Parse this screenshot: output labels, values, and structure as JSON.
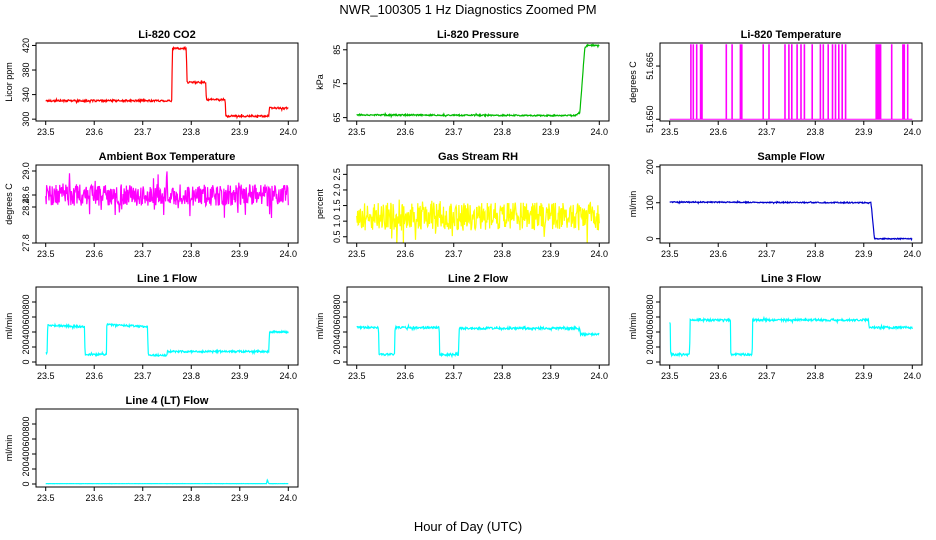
{
  "page_title": "NWR_100305  1 Hz Diagnostics Zoomed PM",
  "x_axis_label": "Hour of Day (UTC)",
  "chart_data": [
    {
      "type": "line",
      "title": "Li-820 CO2",
      "ylabel": "Licor ppm",
      "color": "#ff0000",
      "xlim": [
        23.48,
        24.02
      ],
      "ylim": [
        297,
        424
      ],
      "x_ticks": [
        23.5,
        23.6,
        23.7,
        23.8,
        23.9,
        24.0
      ],
      "y_ticks": [
        300,
        340,
        380,
        420
      ],
      "x_tick_labels": [
        "23.5",
        "23.6",
        "23.7",
        "23.8",
        "23.9",
        "24.0"
      ],
      "y_tick_labels": [
        "300",
        "340",
        "380",
        "420"
      ],
      "x": [
        23.5,
        23.76,
        23.761,
        23.79,
        23.791,
        23.83,
        23.831,
        23.87,
        23.871,
        23.96,
        23.961,
        24.0
      ],
      "y": [
        330,
        330,
        415,
        415,
        360,
        360,
        332,
        332,
        305,
        305,
        318,
        318
      ],
      "noise": 1.5
    },
    {
      "type": "line",
      "title": "Li-820 Pressure",
      "ylabel": "kPa",
      "color": "#00bb00",
      "xlim": [
        23.48,
        24.02
      ],
      "ylim": [
        64,
        87
      ],
      "x_ticks": [
        23.5,
        23.6,
        23.7,
        23.8,
        23.9,
        24.0
      ],
      "y_ticks": [
        65,
        75,
        85
      ],
      "x_tick_labels": [
        "23.5",
        "23.6",
        "23.7",
        "23.8",
        "23.9",
        "24.0"
      ],
      "y_tick_labels": [
        "65",
        "75",
        "85"
      ],
      "x": [
        23.5,
        23.95,
        23.96,
        23.97,
        23.975,
        24.0
      ],
      "y": [
        65.8,
        65.6,
        66.5,
        85.5,
        86.3,
        86.3
      ],
      "noise": 0.2
    },
    {
      "type": "line",
      "title": "Li-820 Temperature",
      "ylabel": "degrees C",
      "color": "#ff00ff",
      "xlim": [
        23.48,
        24.02
      ],
      "ylim": [
        51.6495,
        51.6715
      ],
      "x_ticks": [
        23.5,
        23.6,
        23.7,
        23.8,
        23.9,
        24.0
      ],
      "y_ticks": [
        51.65,
        51.665
      ],
      "x_tick_labels": [
        "23.5",
        "23.6",
        "23.7",
        "23.8",
        "23.9",
        "24.0"
      ],
      "y_tick_labels": [
        "51.650",
        "51.665"
      ],
      "baseline": 51.65,
      "spike_top": 51.671,
      "spikes_x": [
        23.543,
        23.548,
        23.555,
        23.563,
        23.566,
        23.616,
        23.628,
        23.645,
        23.648,
        23.692,
        23.704,
        23.737,
        23.745,
        23.751,
        23.762,
        23.77,
        23.777,
        23.793,
        23.81,
        23.816,
        23.826,
        23.835,
        23.841,
        23.848,
        23.855,
        23.862,
        23.925,
        23.928,
        23.931,
        23.934,
        23.957,
        23.98,
        23.983,
        23.99
      ]
    },
    {
      "type": "line",
      "title": "Ambient Box Temperature",
      "ylabel": "degrees C",
      "color": "#ff00ff",
      "xlim": [
        23.48,
        24.02
      ],
      "ylim": [
        27.8,
        29.1
      ],
      "x_ticks": [
        23.5,
        23.6,
        23.7,
        23.8,
        23.9,
        24.0
      ],
      "y_ticks": [
        27.8,
        28.4,
        28.6,
        29.0
      ],
      "x_tick_labels": [
        "23.5",
        "23.6",
        "23.7",
        "23.8",
        "23.9",
        "24.0"
      ],
      "y_tick_labels": [
        "27.8",
        "28.4",
        "28.6",
        "29.0"
      ],
      "x": [
        23.5,
        24.0
      ],
      "y": [
        28.6,
        28.6
      ],
      "noise": 0.18
    },
    {
      "type": "line",
      "title": "Gas Stream RH",
      "ylabel": "percent",
      "color": "#ffff00",
      "xlim": [
        23.48,
        24.02
      ],
      "ylim": [
        0.3,
        2.8
      ],
      "x_ticks": [
        23.5,
        23.6,
        23.7,
        23.8,
        23.9,
        24.0
      ],
      "y_ticks": [
        0.5,
        1.0,
        1.5,
        2.0,
        2.5
      ],
      "x_tick_labels": [
        "23.5",
        "23.6",
        "23.7",
        "23.8",
        "23.9",
        "24.0"
      ],
      "y_tick_labels": [
        "0.5",
        "1.0",
        "1.5",
        "2.0",
        "2.5"
      ],
      "x": [
        23.5,
        24.0
      ],
      "y": [
        1.15,
        1.15
      ],
      "noise": 0.45
    },
    {
      "type": "line",
      "title": "Sample Flow",
      "ylabel": "ml/min",
      "color": "#0000cc",
      "xlim": [
        23.48,
        24.02
      ],
      "ylim": [
        -12,
        205
      ],
      "x_ticks": [
        23.5,
        23.6,
        23.7,
        23.8,
        23.9,
        24.0
      ],
      "y_ticks": [
        0,
        100,
        200
      ],
      "x_tick_labels": [
        "23.5",
        "23.6",
        "23.7",
        "23.8",
        "23.9",
        "24.0"
      ],
      "y_tick_labels": [
        "0",
        "100",
        "200"
      ],
      "x": [
        23.5,
        23.915,
        23.922,
        24.0
      ],
      "y": [
        102,
        100,
        0,
        0
      ],
      "noise": 1.5
    },
    {
      "type": "line",
      "title": "Line 1 Flow",
      "ylabel": "ml/min",
      "color": "#00ffff",
      "xlim": [
        23.48,
        24.02
      ],
      "ylim": [
        -40,
        1000
      ],
      "x_ticks": [
        23.5,
        23.6,
        23.7,
        23.8,
        23.9,
        24.0
      ],
      "y_ticks": [
        0,
        200,
        400,
        600,
        800
      ],
      "x_tick_labels": [
        "23.5",
        "23.6",
        "23.7",
        "23.8",
        "23.9",
        "24.0"
      ],
      "y_tick_labels": [
        "0",
        "200",
        "400",
        "600",
        "800"
      ],
      "x": [
        23.5,
        23.503,
        23.504,
        23.58,
        23.581,
        23.625,
        23.626,
        23.71,
        23.711,
        23.75,
        23.751,
        23.96,
        23.961,
        24.0
      ],
      "y": [
        120,
        120,
        490,
        470,
        100,
        100,
        500,
        470,
        90,
        90,
        140,
        140,
        400,
        400
      ],
      "noise": 12
    },
    {
      "type": "line",
      "title": "Line 2 Flow",
      "ylabel": "ml/min",
      "color": "#00ffff",
      "xlim": [
        23.48,
        24.02
      ],
      "ylim": [
        -40,
        1000
      ],
      "x_ticks": [
        23.5,
        23.6,
        23.7,
        23.8,
        23.9,
        24.0
      ],
      "y_ticks": [
        0,
        200,
        400,
        600,
        800
      ],
      "x_tick_labels": [
        "23.5",
        "23.6",
        "23.7",
        "23.8",
        "23.9",
        "24.0"
      ],
      "y_tick_labels": [
        "0",
        "200",
        "400",
        "600",
        "800"
      ],
      "x": [
        23.5,
        23.545,
        23.546,
        23.578,
        23.579,
        23.67,
        23.671,
        23.71,
        23.711,
        23.96,
        23.961,
        24.0
      ],
      "y": [
        460,
        460,
        100,
        100,
        460,
        460,
        100,
        100,
        450,
        450,
        370,
        370
      ],
      "noise": 14
    },
    {
      "type": "line",
      "title": "Line 3 Flow",
      "ylabel": "ml/min",
      "color": "#00ffff",
      "xlim": [
        23.48,
        24.02
      ],
      "ylim": [
        -40,
        1000
      ],
      "x_ticks": [
        23.5,
        23.6,
        23.7,
        23.8,
        23.9,
        24.0
      ],
      "y_ticks": [
        0,
        200,
        400,
        600,
        800
      ],
      "x_tick_labels": [
        "23.5",
        "23.6",
        "23.7",
        "23.8",
        "23.9",
        "24.0"
      ],
      "y_tick_labels": [
        "0",
        "200",
        "400",
        "600",
        "800"
      ],
      "x": [
        23.5,
        23.501,
        23.502,
        23.541,
        23.542,
        23.625,
        23.626,
        23.67,
        23.671,
        23.91,
        23.911,
        24.0
      ],
      "y": [
        520,
        520,
        100,
        100,
        560,
        560,
        100,
        100,
        560,
        560,
        460,
        460
      ],
      "noise": 14
    },
    {
      "type": "line",
      "title": "Line 4 (LT) Flow",
      "ylabel": "ml/min",
      "color": "#00ffff",
      "xlim": [
        23.48,
        24.02
      ],
      "ylim": [
        -40,
        1000
      ],
      "x_ticks": [
        23.5,
        23.6,
        23.7,
        23.8,
        23.9,
        24.0
      ],
      "y_ticks": [
        0,
        200,
        400,
        600,
        800
      ],
      "x_tick_labels": [
        "23.5",
        "23.6",
        "23.7",
        "23.8",
        "23.9",
        "24.0"
      ],
      "y_tick_labels": [
        "0",
        "200",
        "400",
        "600",
        "800"
      ],
      "x": [
        23.5,
        23.955,
        23.957,
        23.959,
        23.961,
        24.0
      ],
      "y": [
        5,
        5,
        60,
        10,
        5,
        5
      ],
      "noise": 1
    }
  ]
}
